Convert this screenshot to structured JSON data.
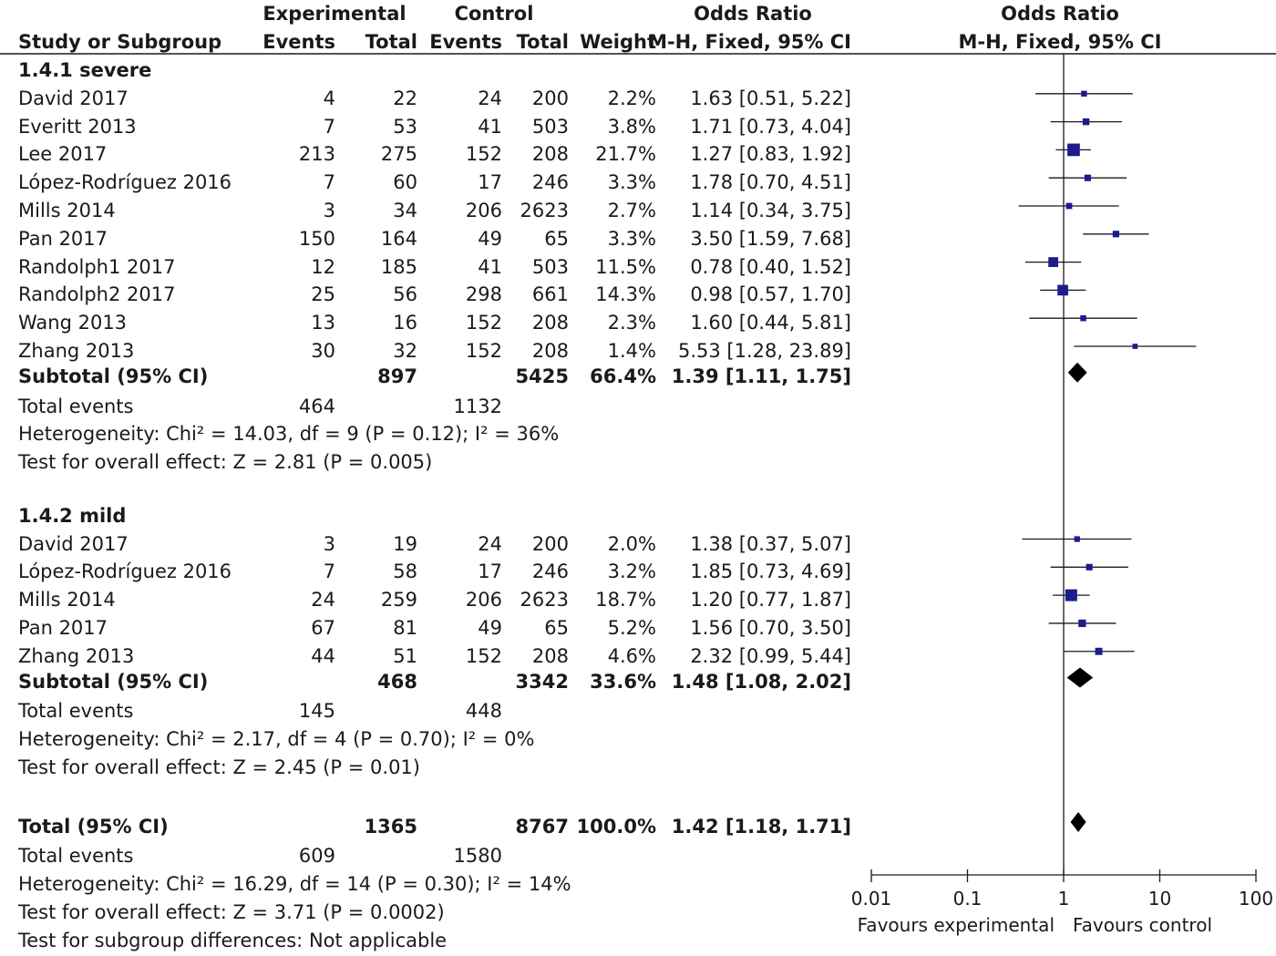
{
  "header": {
    "experimental": "Experimental",
    "control": "Control",
    "odds_ratio_col": "Odds Ratio",
    "odds_ratio_plot": "Odds Ratio",
    "study_col": "Study or Subgroup",
    "exp_events": "Events",
    "exp_total": "Total",
    "ctl_events": "Events",
    "ctl_total": "Total",
    "weight": "Weight",
    "method_col": "M-H, Fixed, 95% CI",
    "method_plot": "M-H, Fixed, 95% CI"
  },
  "groups": [
    {
      "title": "1.4.1 severe",
      "studies": [
        {
          "name": "David 2017",
          "e_ev": "4",
          "e_tot": "22",
          "c_ev": "24",
          "c_tot": "200",
          "weight": "2.2%",
          "ci": "1.63 [0.51, 5.22]"
        },
        {
          "name": "Everitt 2013",
          "e_ev": "7",
          "e_tot": "53",
          "c_ev": "41",
          "c_tot": "503",
          "weight": "3.8%",
          "ci": "1.71 [0.73, 4.04]"
        },
        {
          "name": "Lee 2017",
          "e_ev": "213",
          "e_tot": "275",
          "c_ev": "152",
          "c_tot": "208",
          "weight": "21.7%",
          "ci": "1.27 [0.83, 1.92]"
        },
        {
          "name": "López-Rodríguez 2016",
          "e_ev": "7",
          "e_tot": "60",
          "c_ev": "17",
          "c_tot": "246",
          "weight": "3.3%",
          "ci": "1.78 [0.70, 4.51]"
        },
        {
          "name": "Mills 2014",
          "e_ev": "3",
          "e_tot": "34",
          "c_ev": "206",
          "c_tot": "2623",
          "weight": "2.7%",
          "ci": "1.14 [0.34, 3.75]"
        },
        {
          "name": "Pan 2017",
          "e_ev": "150",
          "e_tot": "164",
          "c_ev": "49",
          "c_tot": "65",
          "weight": "3.3%",
          "ci": "3.50 [1.59, 7.68]"
        },
        {
          "name": "Randolph1 2017",
          "e_ev": "12",
          "e_tot": "185",
          "c_ev": "41",
          "c_tot": "503",
          "weight": "11.5%",
          "ci": "0.78 [0.40, 1.52]"
        },
        {
          "name": "Randolph2 2017",
          "e_ev": "25",
          "e_tot": "56",
          "c_ev": "298",
          "c_tot": "661",
          "weight": "14.3%",
          "ci": "0.98 [0.57, 1.70]"
        },
        {
          "name": "Wang 2013",
          "e_ev": "13",
          "e_tot": "16",
          "c_ev": "152",
          "c_tot": "208",
          "weight": "2.3%",
          "ci": "1.60 [0.44, 5.81]"
        },
        {
          "name": "Zhang 2013",
          "e_ev": "30",
          "e_tot": "32",
          "c_ev": "152",
          "c_tot": "208",
          "weight": "1.4%",
          "ci": "5.53 [1.28, 23.89]"
        }
      ],
      "subtotal": {
        "label": "Subtotal (95% CI)",
        "e_tot": "897",
        "c_tot": "5425",
        "weight": "66.4%",
        "ci": "1.39 [1.11, 1.75]"
      },
      "events": {
        "label": "Total events",
        "e_ev": "464",
        "c_ev": "1132"
      },
      "heterogeneity": "Heterogeneity: Chi² = 14.03, df = 9 (P = 0.12); I² = 36%",
      "overall": "Test for overall effect: Z = 2.81 (P = 0.005)"
    },
    {
      "title": "1.4.2 mild",
      "studies": [
        {
          "name": "David 2017",
          "e_ev": "3",
          "e_tot": "19",
          "c_ev": "24",
          "c_tot": "200",
          "weight": "2.0%",
          "ci": "1.38 [0.37, 5.07]"
        },
        {
          "name": "López-Rodríguez 2016",
          "e_ev": "7",
          "e_tot": "58",
          "c_ev": "17",
          "c_tot": "246",
          "weight": "3.2%",
          "ci": "1.85 [0.73, 4.69]"
        },
        {
          "name": "Mills 2014",
          "e_ev": "24",
          "e_tot": "259",
          "c_ev": "206",
          "c_tot": "2623",
          "weight": "18.7%",
          "ci": "1.20 [0.77, 1.87]"
        },
        {
          "name": "Pan 2017",
          "e_ev": "67",
          "e_tot": "81",
          "c_ev": "49",
          "c_tot": "65",
          "weight": "5.2%",
          "ci": "1.56 [0.70, 3.50]"
        },
        {
          "name": "Zhang 2013",
          "e_ev": "44",
          "e_tot": "51",
          "c_ev": "152",
          "c_tot": "208",
          "weight": "4.6%",
          "ci": "2.32 [0.99, 5.44]"
        }
      ],
      "subtotal": {
        "label": "Subtotal (95% CI)",
        "e_tot": "468",
        "c_tot": "3342",
        "weight": "33.6%",
        "ci": "1.48 [1.08, 2.02]"
      },
      "events": {
        "label": "Total events",
        "e_ev": "145",
        "c_ev": "448"
      },
      "heterogeneity": "Heterogeneity: Chi² = 2.17, df = 4 (P = 0.70); I² = 0%",
      "overall": "Test for overall effect: Z = 2.45 (P = 0.01)"
    }
  ],
  "total": {
    "label": "Total (95% CI)",
    "e_tot": "1365",
    "c_tot": "8767",
    "weight": "100.0%",
    "ci": "1.42 [1.18, 1.71]"
  },
  "total_events": {
    "label": "Total events",
    "e_ev": "609",
    "c_ev": "1580"
  },
  "total_heterogeneity": "Heterogeneity: Chi² = 16.29, df = 14 (P = 0.30); I² = 14%",
  "total_overall": "Test for overall effect: Z = 3.71 (P = 0.0002)",
  "subgroup_test": "Test for subgroup differences: Not applicable",
  "colors": {
    "square": "#1c1c8c",
    "text": "#1a1a1a",
    "line": "#1a1a1a"
  },
  "chart_data": {
    "type": "scatter",
    "scale": "log",
    "xlim": [
      0.01,
      100
    ],
    "ticks": [
      0.01,
      0.1,
      1,
      10,
      100
    ],
    "tick_labels": [
      "0.01",
      "0.1",
      "1",
      "10",
      "100"
    ],
    "null_value": 1,
    "favours_left": "Favours experimental",
    "favours_right": "Favours control",
    "studies": [
      {
        "or": 1.63,
        "lo": 0.51,
        "hi": 5.22,
        "weight": 2.2
      },
      {
        "or": 1.71,
        "lo": 0.73,
        "hi": 4.04,
        "weight": 3.8
      },
      {
        "or": 1.27,
        "lo": 0.83,
        "hi": 1.92,
        "weight": 21.7
      },
      {
        "or": 1.78,
        "lo": 0.7,
        "hi": 4.51,
        "weight": 3.3
      },
      {
        "or": 1.14,
        "lo": 0.34,
        "hi": 3.75,
        "weight": 2.7
      },
      {
        "or": 3.5,
        "lo": 1.59,
        "hi": 7.68,
        "weight": 3.3
      },
      {
        "or": 0.78,
        "lo": 0.4,
        "hi": 1.52,
        "weight": 11.5
      },
      {
        "or": 0.98,
        "lo": 0.57,
        "hi": 1.7,
        "weight": 14.3
      },
      {
        "or": 1.6,
        "lo": 0.44,
        "hi": 5.81,
        "weight": 2.3
      },
      {
        "or": 5.53,
        "lo": 1.28,
        "hi": 23.89,
        "weight": 1.4
      },
      {
        "or": 1.38,
        "lo": 0.37,
        "hi": 5.07,
        "weight": 2.0
      },
      {
        "or": 1.85,
        "lo": 0.73,
        "hi": 4.69,
        "weight": 3.2
      },
      {
        "or": 1.2,
        "lo": 0.77,
        "hi": 1.87,
        "weight": 18.7
      },
      {
        "or": 1.56,
        "lo": 0.7,
        "hi": 3.5,
        "weight": 5.2
      },
      {
        "or": 2.32,
        "lo": 0.99,
        "hi": 5.44,
        "weight": 4.6
      }
    ],
    "diamonds": [
      {
        "or": 1.39,
        "lo": 1.11,
        "hi": 1.75
      },
      {
        "or": 1.48,
        "lo": 1.08,
        "hi": 2.02
      },
      {
        "or": 1.42,
        "lo": 1.18,
        "hi": 1.71
      }
    ]
  }
}
